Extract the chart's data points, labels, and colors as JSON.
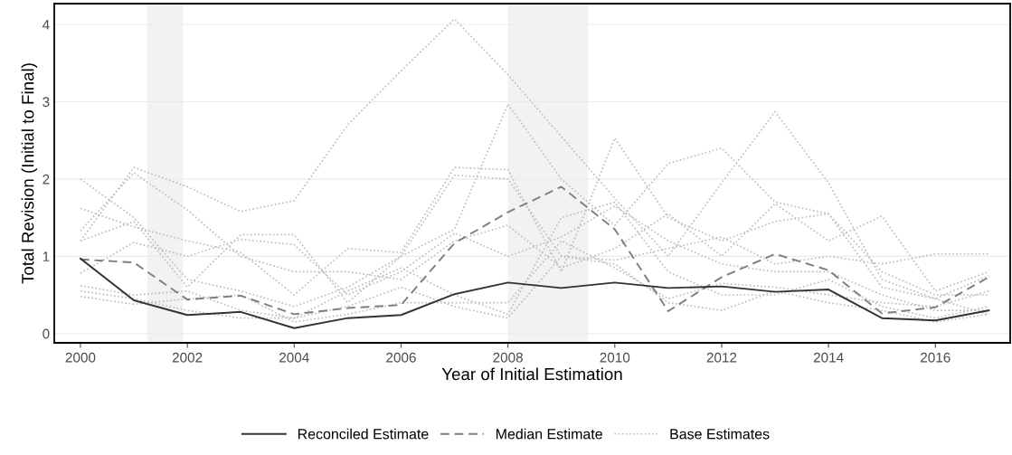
{
  "chart_data": {
    "type": "line",
    "xlabel": "Year of Initial Estimation",
    "ylabel": "Total Revision (Initial to Final)",
    "x": [
      2000,
      2001,
      2002,
      2003,
      2004,
      2005,
      2006,
      2007,
      2008,
      2009,
      2010,
      2011,
      2012,
      2013,
      2014,
      2015,
      2016,
      2017
    ],
    "xlim": [
      1999.51,
      2017.4
    ],
    "xticks": [
      2000,
      2002,
      2004,
      2006,
      2008,
      2010,
      2012,
      2014,
      2016
    ],
    "ylim": [
      -0.12,
      4.27
    ],
    "yticks": [
      0,
      1,
      2,
      3,
      4
    ],
    "grid": "y",
    "legend": "bottom",
    "bands": [
      {
        "axis": "x",
        "from": 2001.25,
        "to": 2001.92,
        "color": "#f2f2f2"
      },
      {
        "axis": "x",
        "from": 2008,
        "to": 2009.5,
        "color": "#f2f2f2"
      }
    ],
    "series": [
      {
        "name": "Base Estimates",
        "color": "#bdbdbd",
        "line_style": "dotted",
        "values": [
          1.2,
          2.15,
          1.9,
          1.58,
          1.72,
          2.7,
          3.4,
          4.07,
          3.35,
          2.55,
          1.75,
          1.0,
          1.95,
          2.87,
          1.95,
          0.7,
          0.45,
          0.25
        ]
      },
      {
        "color": "#bdbdbd",
        "line_style": "dotted",
        "values": [
          2.0,
          1.5,
          0.7,
          0.55,
          0.35,
          0.6,
          1.0,
          1.35,
          2.97,
          2.0,
          1.4,
          2.2,
          2.4,
          1.7,
          1.55,
          0.8,
          0.5,
          0.5
        ]
      },
      {
        "color": "#bdbdbd",
        "line_style": "dotted",
        "values": [
          1.62,
          1.38,
          1.2,
          1.05,
          0.5,
          1.1,
          1.05,
          2.15,
          2.12,
          0.8,
          2.53,
          1.5,
          1.2,
          1.45,
          1.55,
          0.6,
          0.45,
          0.75
        ]
      },
      {
        "color": "#bdbdbd",
        "line_style": "dotted",
        "values": [
          1.33,
          2.08,
          1.6,
          1.0,
          0.8,
          0.8,
          0.7,
          1.2,
          1.4,
          0.85,
          1.1,
          1.55,
          1.0,
          1.68,
          1.2,
          1.52,
          0.55,
          0.8
        ]
      },
      {
        "color": "#bdbdbd",
        "line_style": "dotted",
        "values": [
          1.2,
          1.45,
          0.6,
          1.28,
          1.28,
          0.4,
          1.0,
          2.05,
          2.0,
          1.0,
          0.95,
          1.1,
          1.25,
          0.9,
          1.0,
          0.9,
          1.03,
          1.03
        ]
      },
      {
        "color": "#bdbdbd",
        "line_style": "dotted",
        "values": [
          0.78,
          1.18,
          1.0,
          1.22,
          1.15,
          0.5,
          0.8,
          1.3,
          1.0,
          1.25,
          1.65,
          1.2,
          0.9,
          0.8,
          0.8,
          0.5,
          0.3,
          0.3
        ]
      },
      {
        "color": "#bdbdbd",
        "line_style": "dotted",
        "values": [
          0.62,
          0.5,
          0.55,
          0.3,
          0.2,
          0.55,
          0.85,
          0.5,
          0.25,
          1.5,
          1.7,
          0.8,
          0.5,
          0.5,
          0.7,
          0.35,
          0.2,
          0.35
        ]
      },
      {
        "color": "#bdbdbd",
        "line_style": "dotted",
        "values": [
          0.55,
          0.45,
          0.3,
          0.2,
          0.2,
          0.35,
          0.6,
          0.35,
          0.2,
          1.0,
          0.9,
          0.4,
          0.3,
          0.55,
          0.4,
          0.3,
          0.15,
          0.25
        ]
      },
      {
        "color": "#bdbdbd",
        "line_style": "dotted",
        "values": [
          0.48,
          0.38,
          0.45,
          0.5,
          0.15,
          0.25,
          0.4,
          0.4,
          0.4,
          1.2,
          0.85,
          0.45,
          0.65,
          0.6,
          0.5,
          0.4,
          0.35,
          0.55
        ]
      },
      {
        "name": "Median Estimate",
        "color": "#7f7f7f",
        "line_style": "dashed",
        "values": [
          0.96,
          0.92,
          0.44,
          0.49,
          0.25,
          0.33,
          0.37,
          1.17,
          1.57,
          1.9,
          1.35,
          0.29,
          0.73,
          1.03,
          0.82,
          0.26,
          0.34,
          0.73
        ]
      },
      {
        "name": "Reconciled Estimate",
        "color": "#333333",
        "line_style": "solid",
        "values": [
          0.97,
          0.43,
          0.24,
          0.28,
          0.07,
          0.2,
          0.24,
          0.51,
          0.66,
          0.59,
          0.66,
          0.59,
          0.61,
          0.54,
          0.57,
          0.2,
          0.17,
          0.3
        ]
      }
    ]
  }
}
